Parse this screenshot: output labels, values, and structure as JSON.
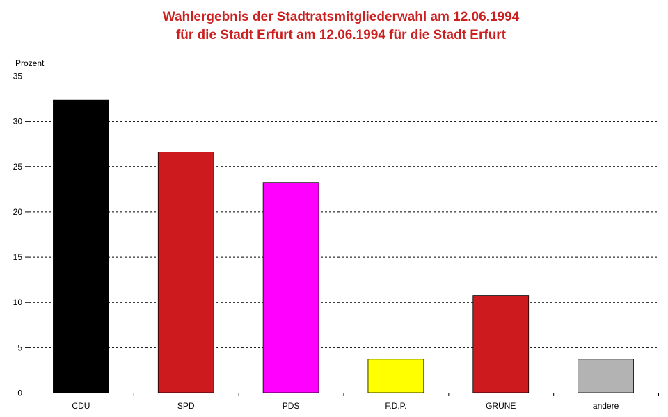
{
  "chart_data": {
    "type": "bar",
    "title_line1": "Wahlergebnis der Stadtratsmitgliederwahl am 12.06.1994",
    "title_line2": "für die Stadt Erfurt am 12.06.1994 für die Stadt Erfurt",
    "xlabel": "",
    "ylabel": "Prozent",
    "ylim": [
      0,
      35
    ],
    "yticks": [
      0,
      5,
      10,
      15,
      20,
      25,
      30,
      35
    ],
    "grid": true,
    "categories": [
      "CDU",
      "SPD",
      "PDS",
      "F.D.P.",
      "GRÜNE",
      "andere"
    ],
    "values": [
      32.3,
      26.6,
      23.2,
      3.7,
      10.7,
      3.7
    ],
    "colors": [
      "#000000",
      "#cc1a1f",
      "#ff00ff",
      "#ffff00",
      "#cc1a1f",
      "#b3b3b3"
    ]
  }
}
